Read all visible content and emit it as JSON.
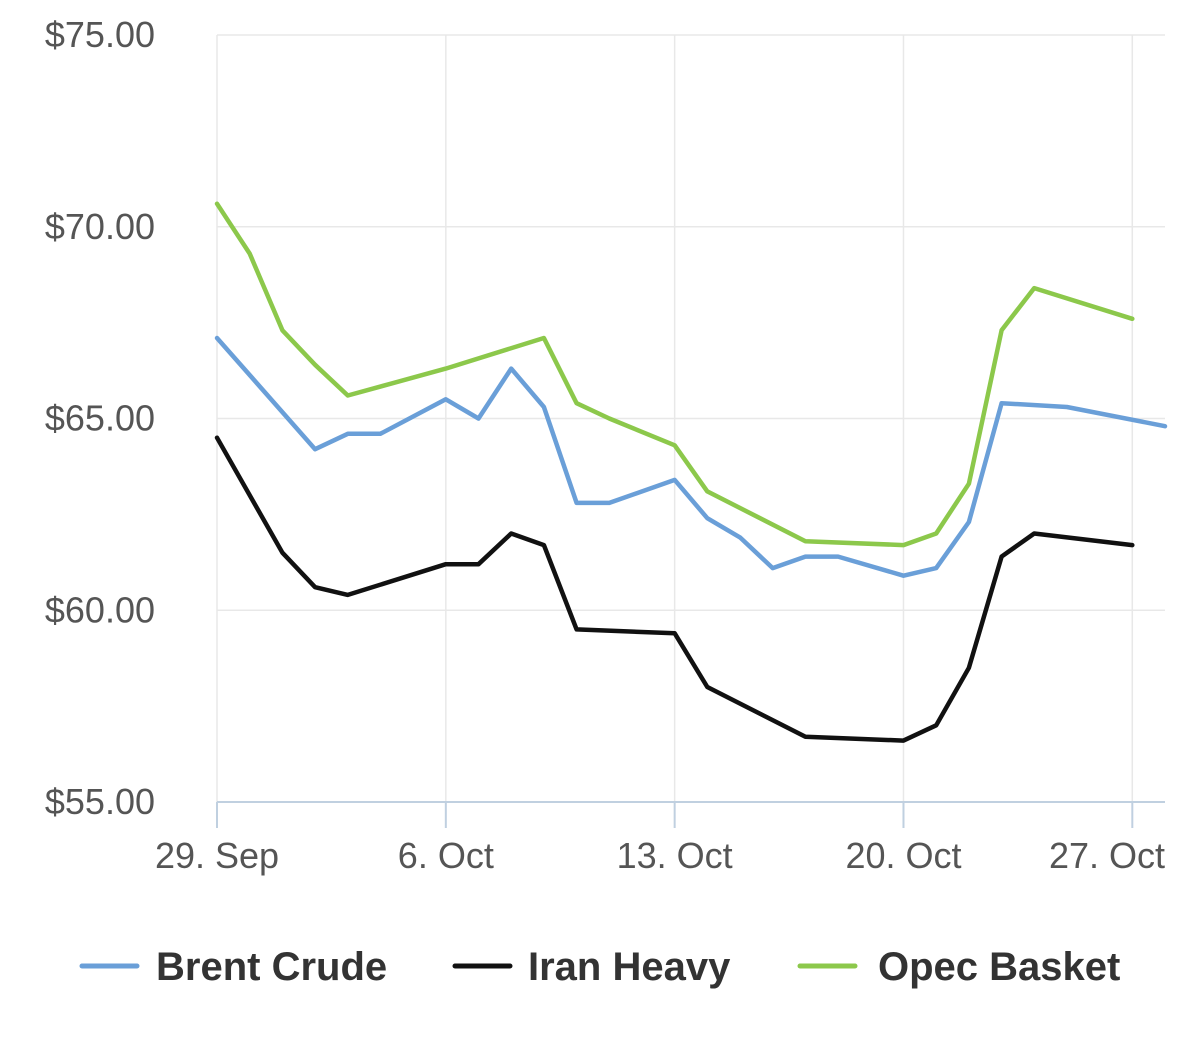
{
  "chart_data": {
    "type": "line",
    "title": "",
    "xlabel": "",
    "ylabel": "",
    "y_tick_labels": [
      "$55.00",
      "$60.00",
      "$65.00",
      "$70.00",
      "$75.00"
    ],
    "y_ticks": [
      55,
      60,
      65,
      70,
      75
    ],
    "ylim": [
      55,
      75
    ],
    "x_tick_labels": [
      "29. Sep",
      "6. Oct",
      "13. Oct",
      "20. Oct",
      "27. Oct"
    ],
    "x_ticks": [
      "2017-09-29",
      "2017-10-06",
      "2017-10-13",
      "2017-10-20",
      "2017-10-27"
    ],
    "xlim": [
      "2017-09-29",
      "2017-10-28"
    ],
    "grid": true,
    "legend_position": "bottom",
    "series": [
      {
        "name": "Brent Crude",
        "color": "#6a9fd8",
        "points": [
          [
            "2017-09-29",
            67.1
          ],
          [
            "2017-10-02",
            64.2
          ],
          [
            "2017-10-03",
            64.6
          ],
          [
            "2017-10-04",
            64.6
          ],
          [
            "2017-10-06",
            65.5
          ],
          [
            "2017-10-07",
            65.0
          ],
          [
            "2017-10-08",
            66.3
          ],
          [
            "2017-10-09",
            65.3
          ],
          [
            "2017-10-10",
            62.8
          ],
          [
            "2017-10-11",
            62.8
          ],
          [
            "2017-10-13",
            63.4
          ],
          [
            "2017-10-14",
            62.4
          ],
          [
            "2017-10-15",
            61.9
          ],
          [
            "2017-10-16",
            61.1
          ],
          [
            "2017-10-17",
            61.4
          ],
          [
            "2017-10-18",
            61.4
          ],
          [
            "2017-10-20",
            60.9
          ],
          [
            "2017-10-21",
            61.1
          ],
          [
            "2017-10-22",
            62.3
          ],
          [
            "2017-10-23",
            65.4
          ],
          [
            "2017-10-25",
            65.3
          ],
          [
            "2017-10-28",
            64.8
          ]
        ]
      },
      {
        "name": "Iran Heavy",
        "color": "#111111",
        "points": [
          [
            "2017-09-29",
            64.5
          ],
          [
            "2017-10-01",
            61.5
          ],
          [
            "2017-10-02",
            60.6
          ],
          [
            "2017-10-03",
            60.4
          ],
          [
            "2017-10-06",
            61.2
          ],
          [
            "2017-10-07",
            61.2
          ],
          [
            "2017-10-08",
            62.0
          ],
          [
            "2017-10-09",
            61.7
          ],
          [
            "2017-10-10",
            59.5
          ],
          [
            "2017-10-13",
            59.4
          ],
          [
            "2017-10-14",
            58.0
          ],
          [
            "2017-10-17",
            56.7
          ],
          [
            "2017-10-20",
            56.6
          ],
          [
            "2017-10-21",
            57.0
          ],
          [
            "2017-10-22",
            58.5
          ],
          [
            "2017-10-23",
            61.4
          ],
          [
            "2017-10-24",
            62.0
          ],
          [
            "2017-10-27",
            61.7
          ]
        ]
      },
      {
        "name": "Opec Basket",
        "color": "#8cc84b",
        "points": [
          [
            "2017-09-29",
            70.6
          ],
          [
            "2017-09-30",
            69.3
          ],
          [
            "2017-10-01",
            67.3
          ],
          [
            "2017-10-02",
            66.4
          ],
          [
            "2017-10-03",
            65.6
          ],
          [
            "2017-10-06",
            66.3
          ],
          [
            "2017-10-09",
            67.1
          ],
          [
            "2017-10-10",
            65.4
          ],
          [
            "2017-10-11",
            65.0
          ],
          [
            "2017-10-13",
            64.3
          ],
          [
            "2017-10-14",
            63.1
          ],
          [
            "2017-10-17",
            61.8
          ],
          [
            "2017-10-20",
            61.7
          ],
          [
            "2017-10-21",
            62.0
          ],
          [
            "2017-10-22",
            63.3
          ],
          [
            "2017-10-23",
            67.3
          ],
          [
            "2017-10-24",
            68.4
          ],
          [
            "2017-10-27",
            67.6
          ]
        ]
      }
    ]
  }
}
